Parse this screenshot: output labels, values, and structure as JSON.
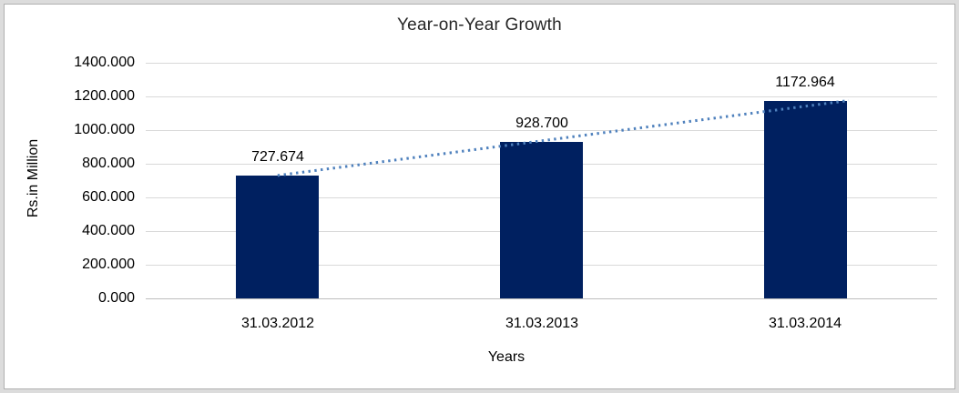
{
  "chart_data": {
    "type": "bar",
    "title": "Year-on-Year Growth",
    "categories": [
      "31.03.2012",
      "31.03.2013",
      "31.03.2014"
    ],
    "values": [
      727.674,
      928.7,
      1172.964
    ],
    "value_labels": [
      "727.674",
      "928.700",
      "1172.964"
    ],
    "xlabel": "Years",
    "ylabel": "Rs.in Million",
    "ylim": [
      0,
      1400
    ],
    "ytick_interval": 200,
    "ytick_labels": [
      "1400.000",
      "1200.000",
      "1000.000",
      "800.000",
      "600.000",
      "400.000",
      "200.000",
      "0.000"
    ],
    "grid": true,
    "legend": "none",
    "bar_color": "#002060",
    "gridline_color": "#d9d9d9",
    "trendline": {
      "type": "linear",
      "style": "dotted",
      "color": "#4f81bd"
    }
  }
}
